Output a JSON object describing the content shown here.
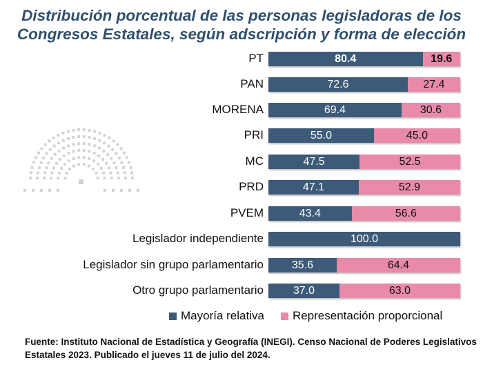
{
  "chart_data": {
    "type": "bar",
    "stacked": true,
    "orientation": "horizontal",
    "title": "Distribución porcentual de las personas legisladoras de los Congresos Estatales, según adscripción y forma de elección",
    "categories": [
      "PT",
      "PAN",
      "MORENA",
      "PRI",
      "MC",
      "PRD",
      "PVEM",
      "Legislador independiente",
      "Legislador sin grupo parlamentario",
      "Otro grupo parlamentario"
    ],
    "series": [
      {
        "name": "Mayoría relativa",
        "color": "#3d5a78",
        "values": [
          80.4,
          72.6,
          69.4,
          55.0,
          47.5,
          47.1,
          43.4,
          100.0,
          35.6,
          37.0
        ]
      },
      {
        "name": "Representación proporcional",
        "color": "#e88aa8",
        "values": [
          19.6,
          27.4,
          30.6,
          45.0,
          52.5,
          52.9,
          56.6,
          0,
          64.4,
          63.0
        ]
      }
    ],
    "xlim": [
      0,
      100
    ],
    "legend": "bottom"
  },
  "footnote_line1": "Fuente: Instituto Nacional de Estadística y Geografía (INEGI). Censo Nacional de Poderes Legislativos",
  "footnote_line2": "Estatales 2023. Publicado el jueves 11 de julio del 2024."
}
